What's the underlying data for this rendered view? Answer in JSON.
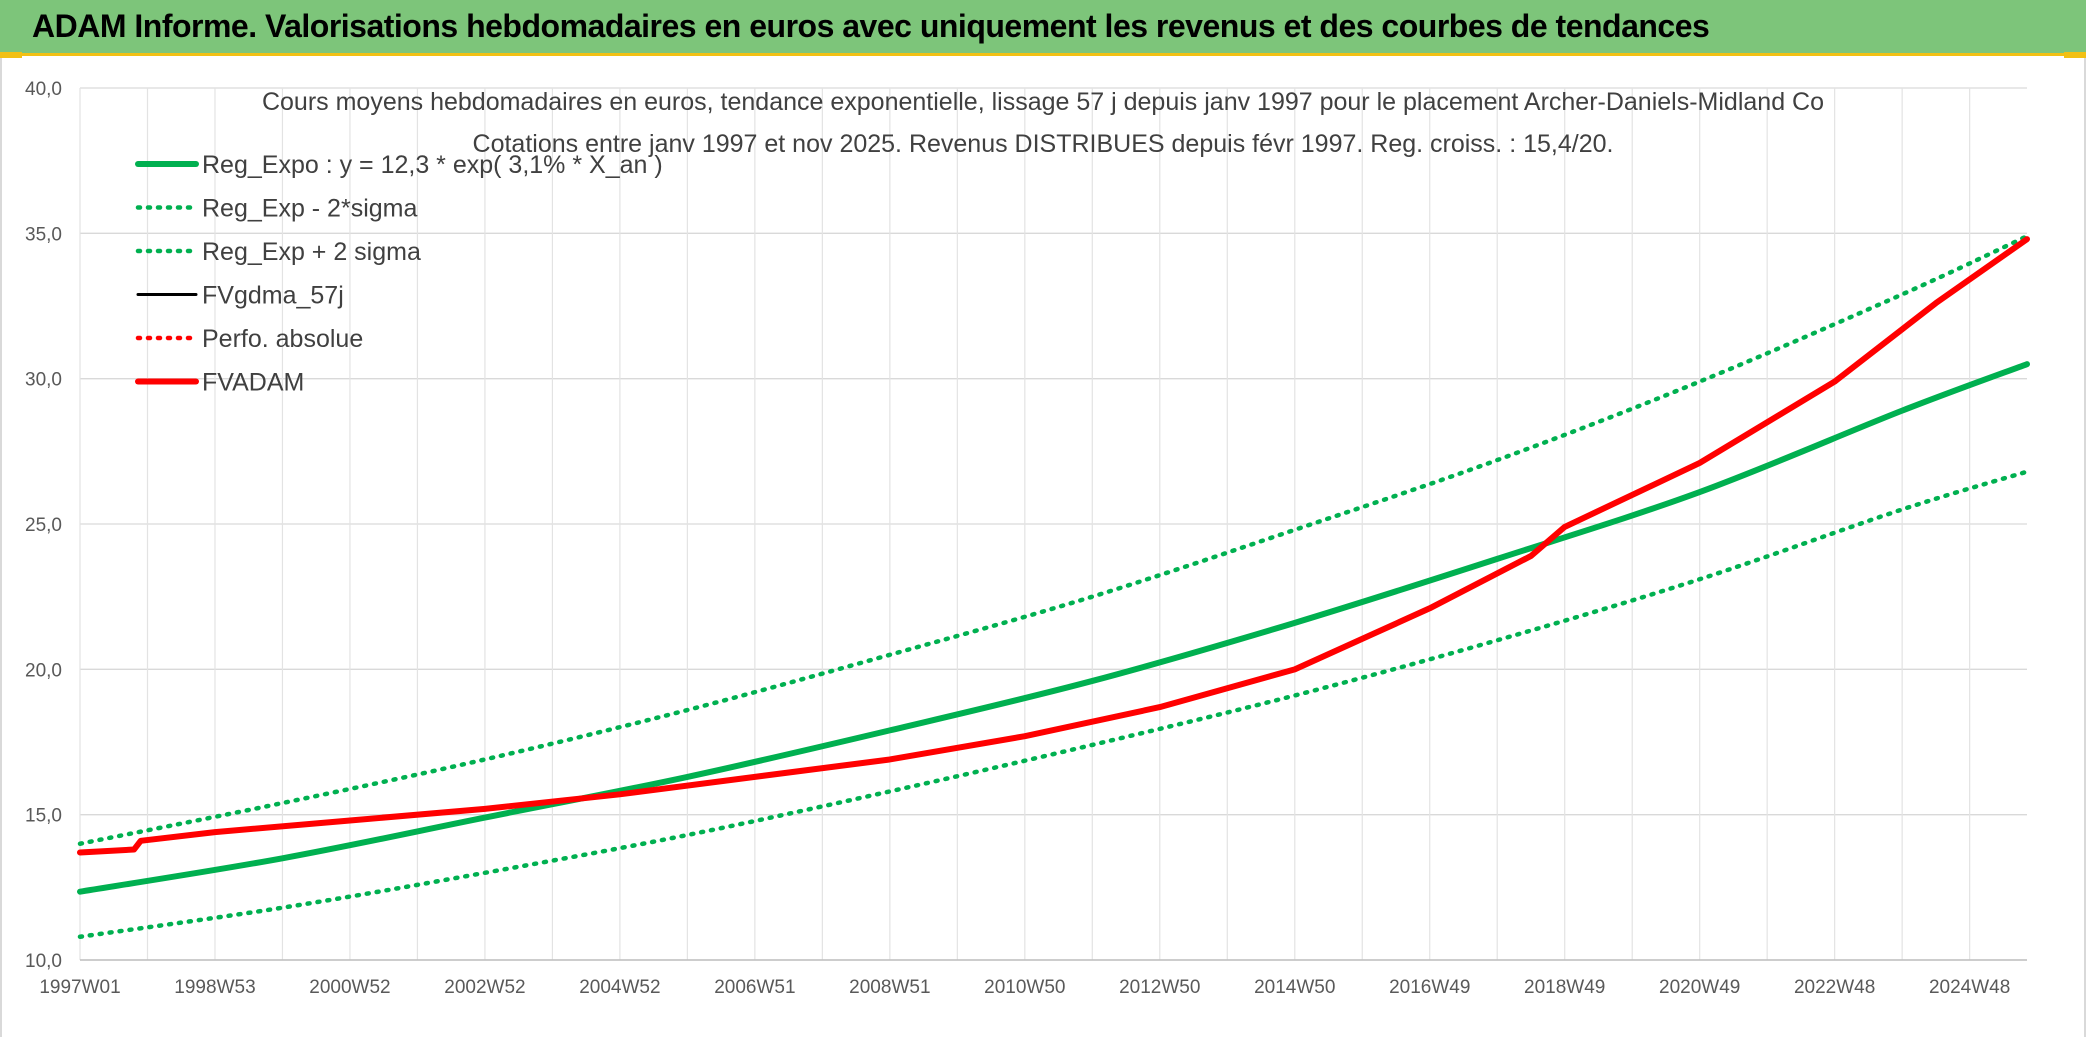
{
  "header": {
    "title": "ADAM Informe. Valorisations hebdomadaires en euros avec uniquement les revenus et des courbes de tendances"
  },
  "colors": {
    "header_bg": "#7dc57a",
    "accent": "#f2c014",
    "green": "#00b050",
    "red": "#ff0000",
    "black": "#000000"
  },
  "chart_data": {
    "type": "line",
    "title": "Cours moyens hebdomadaires en euros, tendance exponentielle, lissage 57 j depuis janv 1997 pour le placement Archer-Daniels-Midland Co",
    "subtitle": "Cotations entre janv 1997 et nov 2025. Revenus DISTRIBUES depuis févr 1997. Reg. croiss. : 15,4/20.",
    "xlabel": "",
    "ylabel": "",
    "xlim": [
      1997.0,
      2025.85
    ],
    "ylim": [
      10,
      40
    ],
    "y_ticks": [
      "10,0",
      "15,0",
      "20,0",
      "25,0",
      "30,0",
      "35,0",
      "40,0"
    ],
    "x_ticks": [
      {
        "label": "1997W01",
        "x": 1997.0
      },
      {
        "label": "1998W53",
        "x": 1999.0
      },
      {
        "label": "2000W52",
        "x": 2001.0
      },
      {
        "label": "2002W52",
        "x": 2003.0
      },
      {
        "label": "2004W52",
        "x": 2005.0
      },
      {
        "label": "2006W51",
        "x": 2007.0
      },
      {
        "label": "2008W51",
        "x": 2009.0
      },
      {
        "label": "2010W50",
        "x": 2011.0
      },
      {
        "label": "2012W50",
        "x": 2013.0
      },
      {
        "label": "2014W50",
        "x": 2015.0
      },
      {
        "label": "2016W49",
        "x": 2017.0
      },
      {
        "label": "2018W49",
        "x": 2019.0
      },
      {
        "label": "2020W49",
        "x": 2021.0
      },
      {
        "label": "2022W48",
        "x": 2023.0
      },
      {
        "label": "2024W48",
        "x": 2025.0
      }
    ],
    "grid": true,
    "legend_position": "top-left",
    "series": [
      {
        "name": "Reg_Expo : y = 12,3 * exp( 3,1% *  X_an )",
        "style": "solid-thick",
        "color": "#00b050",
        "x": [
          1997.0,
          2000.0,
          2003.0,
          2006.0,
          2009.0,
          2012.0,
          2015.0,
          2018.0,
          2021.0,
          2024.0,
          2025.85
        ],
        "y": [
          12.35,
          13.5,
          14.9,
          16.3,
          17.9,
          19.6,
          21.6,
          23.8,
          26.1,
          28.9,
          30.5
        ]
      },
      {
        "name": "Reg_Exp - 2*sigma",
        "style": "dotted",
        "color": "#00b050",
        "x": [
          1997.0,
          2000.0,
          2003.0,
          2006.0,
          2009.0,
          2012.0,
          2015.0,
          2018.0,
          2021.0,
          2024.0,
          2025.85
        ],
        "y": [
          10.8,
          11.8,
          13.0,
          14.3,
          15.8,
          17.4,
          19.1,
          21.0,
          23.1,
          25.5,
          26.8
        ]
      },
      {
        "name": "Reg_Exp + 2 sigma",
        "style": "dotted",
        "color": "#00b050",
        "x": [
          1997.0,
          2000.0,
          2003.0,
          2006.0,
          2009.0,
          2012.0,
          2015.0,
          2018.0,
          2021.0,
          2024.0,
          2025.85
        ],
        "y": [
          14.0,
          15.4,
          16.9,
          18.6,
          20.5,
          22.5,
          24.8,
          27.2,
          29.9,
          32.9,
          34.9
        ]
      },
      {
        "name": "FVgdma_57j",
        "style": "solid",
        "color": "#000000",
        "x": [
          1997.0,
          1997.8,
          1997.9,
          1999.0,
          2001.0,
          2003.0,
          2005.0,
          2007.0,
          2009.0,
          2011.0,
          2013.0,
          2015.0,
          2017.0,
          2018.5,
          2019.0,
          2021.0,
          2023.0,
          2024.5,
          2025.85
        ],
        "y": [
          13.7,
          13.8,
          14.1,
          14.4,
          14.8,
          15.2,
          15.7,
          16.3,
          16.9,
          17.7,
          18.7,
          20.0,
          22.1,
          23.9,
          24.9,
          27.1,
          29.9,
          32.6,
          34.8
        ]
      },
      {
        "name": "Perfo. absolue",
        "style": "dotted",
        "color": "#ff0000",
        "x": [
          1997.0,
          1997.8,
          1997.9,
          1999.0,
          2001.0,
          2003.0,
          2005.0,
          2007.0,
          2009.0,
          2011.0,
          2013.0,
          2015.0,
          2017.0,
          2018.5,
          2019.0,
          2021.0,
          2023.0,
          2024.5,
          2025.85
        ],
        "y": [
          13.7,
          13.8,
          14.1,
          14.4,
          14.8,
          15.2,
          15.7,
          16.3,
          16.9,
          17.7,
          18.7,
          20.0,
          22.1,
          23.9,
          24.9,
          27.1,
          29.9,
          32.6,
          34.8
        ]
      },
      {
        "name": "FVADAM",
        "style": "solid-thick",
        "color": "#ff0000",
        "x": [
          1997.0,
          1997.8,
          1997.9,
          1999.0,
          2001.0,
          2003.0,
          2005.0,
          2007.0,
          2009.0,
          2011.0,
          2013.0,
          2015.0,
          2017.0,
          2018.5,
          2019.0,
          2021.0,
          2023.0,
          2024.5,
          2025.85
        ],
        "y": [
          13.7,
          13.8,
          14.1,
          14.4,
          14.8,
          15.2,
          15.7,
          16.3,
          16.9,
          17.7,
          18.7,
          20.0,
          22.1,
          23.9,
          24.9,
          27.1,
          29.9,
          32.6,
          34.8
        ]
      }
    ]
  }
}
